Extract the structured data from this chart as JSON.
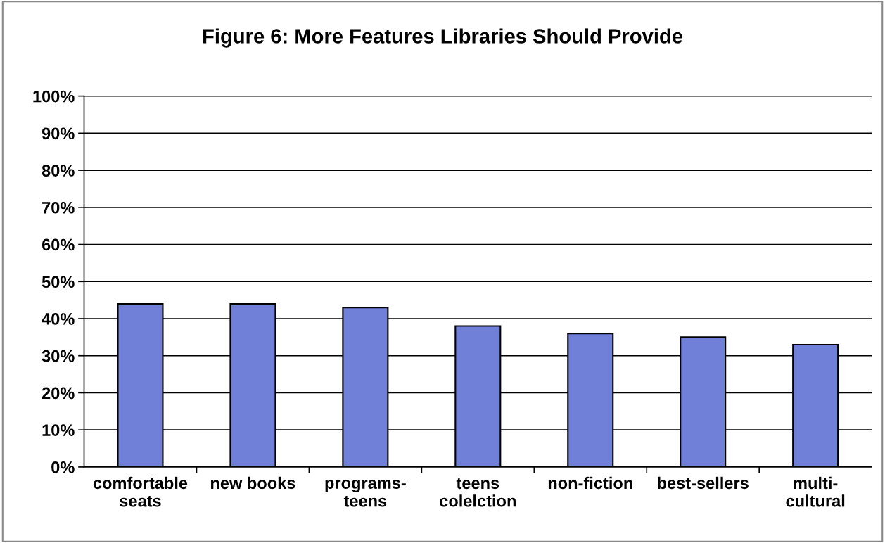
{
  "chart_data": {
    "type": "bar",
    "title": "Figure 6: More Features Libraries Should Provide",
    "categories": [
      "comfortable\nseats",
      "new books",
      "programs-\nteens",
      "teens\ncolelction",
      "non-fiction",
      "best-sellers",
      "multi-\ncultural"
    ],
    "values": [
      44,
      44,
      43,
      38,
      36,
      35,
      33
    ],
    "color": "#7080d8",
    "ylim": [
      0,
      100
    ],
    "yticks": [
      {
        "value": 0,
        "label": "0%"
      },
      {
        "value": 10,
        "label": "10%"
      },
      {
        "value": 20,
        "label": "20%"
      },
      {
        "value": 30,
        "label": "30%"
      },
      {
        "value": 40,
        "label": "40%"
      },
      {
        "value": 50,
        "label": "50%"
      },
      {
        "value": 60,
        "label": "60%"
      },
      {
        "value": 70,
        "label": "70%"
      },
      {
        "value": 80,
        "label": "80%"
      },
      {
        "value": 90,
        "label": "90%"
      },
      {
        "value": 100,
        "label": "100%"
      }
    ],
    "grid": "y",
    "legend": false
  }
}
